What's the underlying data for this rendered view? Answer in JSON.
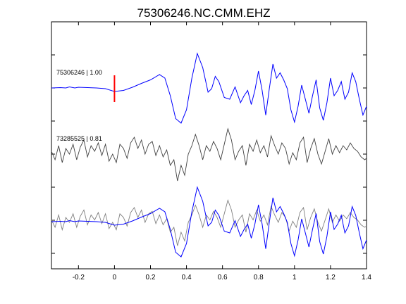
{
  "chart_data": {
    "type": "line",
    "title": "75306246.NC.CMM.EHZ",
    "xlabel": "",
    "ylabel": "",
    "xlim": [
      -0.35,
      1.4
    ],
    "xticks": [
      -0.2,
      0,
      0.2,
      0.4,
      0.6,
      0.8,
      1,
      1.2,
      1.4
    ],
    "xtick_labels": [
      "-0.2",
      "0",
      "0.2",
      "0.4",
      "0.6",
      "0.8",
      "1",
      "1.2",
      "1.4"
    ],
    "grid": false,
    "marker": {
      "x": 0,
      "color": "#ff0000"
    },
    "colors": {
      "master": "#0000ff",
      "correlated": "#404040",
      "overlay_gray": "#808080"
    },
    "traces": [
      {
        "label": "75306246 | 1.00",
        "color": "#0000ff",
        "points": [
          [
            -0.35,
            0.02
          ],
          [
            -0.3,
            0.03
          ],
          [
            -0.27,
            0.02
          ],
          [
            -0.25,
            0.05
          ],
          [
            -0.22,
            0.02
          ],
          [
            -0.2,
            0.04
          ],
          [
            -0.15,
            0.03
          ],
          [
            -0.1,
            0.02
          ],
          [
            -0.05,
            0.0
          ],
          [
            0.0,
            -0.08
          ],
          [
            0.05,
            -0.05
          ],
          [
            0.1,
            0.04
          ],
          [
            0.15,
            0.15
          ],
          [
            0.2,
            0.25
          ],
          [
            0.25,
            0.4
          ],
          [
            0.28,
            0.3
          ],
          [
            0.31,
            -0.2
          ],
          [
            0.34,
            -0.85
          ],
          [
            0.37,
            -0.98
          ],
          [
            0.4,
            -0.6
          ],
          [
            0.43,
            0.3
          ],
          [
            0.46,
            1.0
          ],
          [
            0.49,
            0.6
          ],
          [
            0.52,
            -0.1
          ],
          [
            0.54,
            0.0
          ],
          [
            0.56,
            0.35
          ],
          [
            0.58,
            0.2
          ],
          [
            0.61,
            -0.25
          ],
          [
            0.64,
            -0.3
          ],
          [
            0.67,
            0.05
          ],
          [
            0.7,
            -0.4
          ],
          [
            0.72,
            -0.2
          ],
          [
            0.74,
            -0.05
          ],
          [
            0.76,
            -0.45
          ],
          [
            0.78,
            -0.05
          ],
          [
            0.8,
            0.5
          ],
          [
            0.82,
            -0.05
          ],
          [
            0.84,
            -0.75
          ],
          [
            0.86,
            0.0
          ],
          [
            0.88,
            0.7
          ],
          [
            0.9,
            0.3
          ],
          [
            0.92,
            0.45
          ],
          [
            0.94,
            0.25
          ],
          [
            0.96,
            0.0
          ],
          [
            0.98,
            -0.6
          ],
          [
            1.0,
            -0.95
          ],
          [
            1.02,
            -0.5
          ],
          [
            1.04,
            0.1
          ],
          [
            1.06,
            -0.3
          ],
          [
            1.08,
            -0.7
          ],
          [
            1.1,
            -0.2
          ],
          [
            1.12,
            0.25
          ],
          [
            1.14,
            -0.55
          ],
          [
            1.16,
            -0.9
          ],
          [
            1.18,
            -0.4
          ],
          [
            1.2,
            0.3
          ],
          [
            1.22,
            -0.2
          ],
          [
            1.24,
            -0.05
          ],
          [
            1.26,
            0.2
          ],
          [
            1.28,
            -0.3
          ],
          [
            1.3,
            -0.1
          ],
          [
            1.32,
            0.45
          ],
          [
            1.34,
            0.2
          ],
          [
            1.36,
            -0.3
          ],
          [
            1.38,
            -0.75
          ],
          [
            1.4,
            -0.5
          ]
        ]
      },
      {
        "label": "73285525 | 0.81",
        "color": "#404040",
        "points": [
          [
            -0.35,
            0.1
          ],
          [
            -0.33,
            -0.2
          ],
          [
            -0.31,
            0.3
          ],
          [
            -0.29,
            -0.3
          ],
          [
            -0.27,
            0.2
          ],
          [
            -0.25,
            0.0
          ],
          [
            -0.23,
            0.35
          ],
          [
            -0.21,
            -0.2
          ],
          [
            -0.19,
            0.25
          ],
          [
            -0.17,
            0.5
          ],
          [
            -0.15,
            -0.1
          ],
          [
            -0.13,
            0.3
          ],
          [
            -0.11,
            0.1
          ],
          [
            -0.09,
            0.4
          ],
          [
            -0.07,
            -0.05
          ],
          [
            -0.05,
            0.35
          ],
          [
            -0.03,
            -0.25
          ],
          [
            -0.01,
            0.0
          ],
          [
            0.01,
            -0.3
          ],
          [
            0.03,
            0.35
          ],
          [
            0.05,
            0.2
          ],
          [
            0.07,
            -0.15
          ],
          [
            0.09,
            0.4
          ],
          [
            0.11,
            0.6
          ],
          [
            0.13,
            0.2
          ],
          [
            0.15,
            0.5
          ],
          [
            0.17,
            0.0
          ],
          [
            0.19,
            0.35
          ],
          [
            0.21,
            0.45
          ],
          [
            0.23,
            -0.05
          ],
          [
            0.25,
            0.3
          ],
          [
            0.27,
            -0.1
          ],
          [
            0.29,
            0.15
          ],
          [
            0.31,
            -0.4
          ],
          [
            0.33,
            -0.2
          ],
          [
            0.35,
            -0.95
          ],
          [
            0.37,
            -0.4
          ],
          [
            0.39,
            -0.75
          ],
          [
            0.41,
            0.0
          ],
          [
            0.43,
            0.3
          ],
          [
            0.45,
            0.7
          ],
          [
            0.47,
            0.3
          ],
          [
            0.49,
            -0.2
          ],
          [
            0.51,
            0.3
          ],
          [
            0.53,
            0.1
          ],
          [
            0.55,
            0.45
          ],
          [
            0.57,
            0.2
          ],
          [
            0.59,
            -0.2
          ],
          [
            0.61,
            0.35
          ],
          [
            0.63,
            0.9
          ],
          [
            0.65,
            0.5
          ],
          [
            0.67,
            -0.2
          ],
          [
            0.69,
            0.1
          ],
          [
            0.71,
            0.3
          ],
          [
            0.73,
            -0.4
          ],
          [
            0.75,
            0.35
          ],
          [
            0.77,
            0.1
          ],
          [
            0.79,
            0.5
          ],
          [
            0.81,
            0.05
          ],
          [
            0.83,
            0.3
          ],
          [
            0.85,
            -0.1
          ],
          [
            0.87,
            0.65
          ],
          [
            0.89,
            0.3
          ],
          [
            0.91,
            0.0
          ],
          [
            0.93,
            0.4
          ],
          [
            0.95,
            0.2
          ],
          [
            0.97,
            -0.35
          ],
          [
            0.99,
            0.05
          ],
          [
            1.01,
            -0.2
          ],
          [
            1.03,
            0.4
          ],
          [
            1.05,
            0.6
          ],
          [
            1.07,
            -0.3
          ],
          [
            1.09,
            0.2
          ],
          [
            1.11,
            0.55
          ],
          [
            1.13,
            0.0
          ],
          [
            1.15,
            -0.35
          ],
          [
            1.17,
            0.1
          ],
          [
            1.19,
            0.55
          ],
          [
            1.21,
            0.0
          ],
          [
            1.23,
            0.3
          ],
          [
            1.25,
            0.05
          ],
          [
            1.27,
            0.3
          ],
          [
            1.29,
            0.15
          ],
          [
            1.31,
            0.4
          ],
          [
            1.33,
            0.2
          ],
          [
            1.35,
            0.1
          ],
          [
            1.37,
            -0.1
          ],
          [
            1.39,
            -0.2
          ],
          [
            1.4,
            -0.15
          ]
        ]
      }
    ]
  }
}
